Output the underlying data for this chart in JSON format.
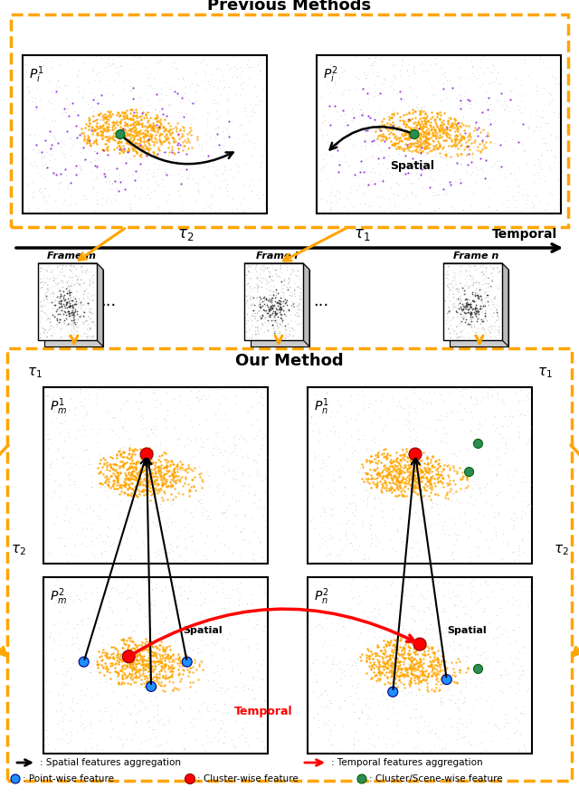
{
  "fig_width": 6.4,
  "fig_height": 8.81,
  "bg_color": "#FFFFFF",
  "orange": "#FFA500",
  "title_prev": "Previous Methods",
  "title_our": "Our Method",
  "tau1": "τ₁",
  "tau2": "τ₂",
  "frame_labels": [
    "Frame m",
    "Frame i",
    "Frame n"
  ],
  "legend": [
    {
      "type": "arrow_black",
      "text": ": Spatial features aggregation"
    },
    {
      "type": "arrow_red",
      "text": ": Temporal features aggregation"
    },
    {
      "type": "dot_blue",
      "text": ": Point-wise feature"
    },
    {
      "type": "dot_red",
      "text": ": Cluster-wise feature"
    },
    {
      "type": "dot_green",
      "text": ": Cluster/Scene-wise feature"
    }
  ]
}
